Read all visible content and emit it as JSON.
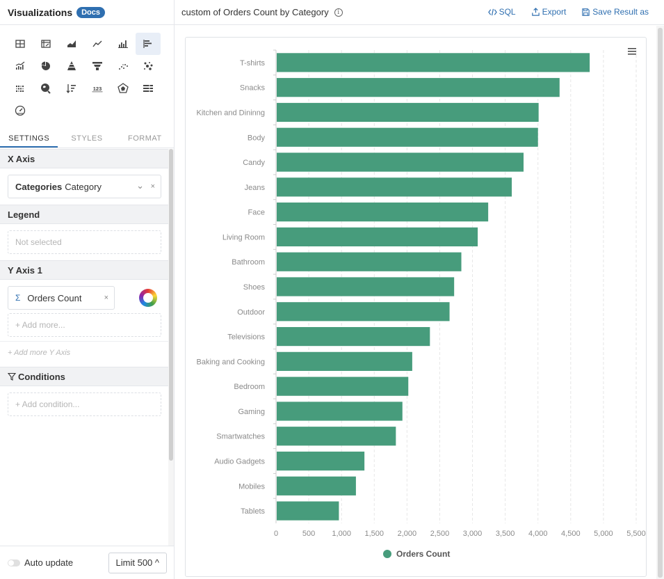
{
  "left_panel": {
    "title": "Visualizations",
    "docs_label": "Docs",
    "viz_icons": [
      "table-icon",
      "pivot-table-icon",
      "area-chart-icon",
      "line-chart-icon",
      "bar-chart-icon",
      "horizontal-bar-chart-icon",
      "combo-chart-icon",
      "pie-chart-icon",
      "pyramid-chart-icon",
      "funnel-chart-icon",
      "scatter-chart-icon",
      "bubble-chart-icon",
      "heatmap-icon",
      "map-icon",
      "sorted-bar-icon",
      "number-icon",
      "radar-chart-icon",
      "bullet-chart-icon",
      "gauge-icon"
    ],
    "active_viz": "horizontal-bar-chart-icon",
    "number_glyph": "123",
    "tabs": [
      "SETTINGS",
      "STYLES",
      "FORMAT"
    ],
    "active_tab": "SETTINGS",
    "x_axis": {
      "heading": "X Axis",
      "field_bold": "Categories",
      "field_name": "Category",
      "chevron": "⌄",
      "remove": "×"
    },
    "legend": {
      "heading": "Legend",
      "placeholder": "Not selected"
    },
    "y_axis": {
      "heading": "Y Axis 1",
      "sigma": "Σ",
      "field_name": "Orders Count",
      "remove": "×",
      "add_more": "+ Add more...",
      "add_more_y_axis": "+ Add more Y Axis"
    },
    "conditions": {
      "heading": "Conditions",
      "add_condition": "+ Add condition..."
    },
    "bottom": {
      "auto_update": "Auto update",
      "limit": "Limit 500 ^"
    }
  },
  "topbar": {
    "title": "custom of Orders Count by Category",
    "info": "i",
    "sql": "SQL",
    "export": "Export",
    "save": "Save Result as"
  },
  "colors": {
    "bar": "#479c7c",
    "accent": "#2f6fb0",
    "axis_text": "#8a8a8a"
  },
  "chart_data": {
    "type": "bar",
    "orientation": "horizontal",
    "categories": [
      "T-shirts",
      "Snacks",
      "Kitchen and Dininng",
      "Body",
      "Candy",
      "Jeans",
      "Face",
      "Living Room",
      "Bathroom",
      "Shoes",
      "Outdoor",
      "Televisions",
      "Baking and Cooking",
      "Bedroom",
      "Gaming",
      "Smartwatches",
      "Audio Gadgets",
      "Mobiles",
      "Tablets"
    ],
    "series": [
      {
        "name": "Orders Count",
        "values": [
          4790,
          4330,
          4010,
          4000,
          3780,
          3600,
          3240,
          3080,
          2830,
          2720,
          2650,
          2350,
          2080,
          2020,
          1930,
          1830,
          1350,
          1220,
          960
        ]
      }
    ],
    "x_ticks": [
      "0",
      "500",
      "1,000",
      "1,500",
      "2,000",
      "2,500",
      "3,000",
      "3,500",
      "4,000",
      "4,500",
      "5,000",
      "5,500"
    ],
    "xlim": [
      0,
      5500
    ],
    "legend": "bottom",
    "grid": true
  }
}
